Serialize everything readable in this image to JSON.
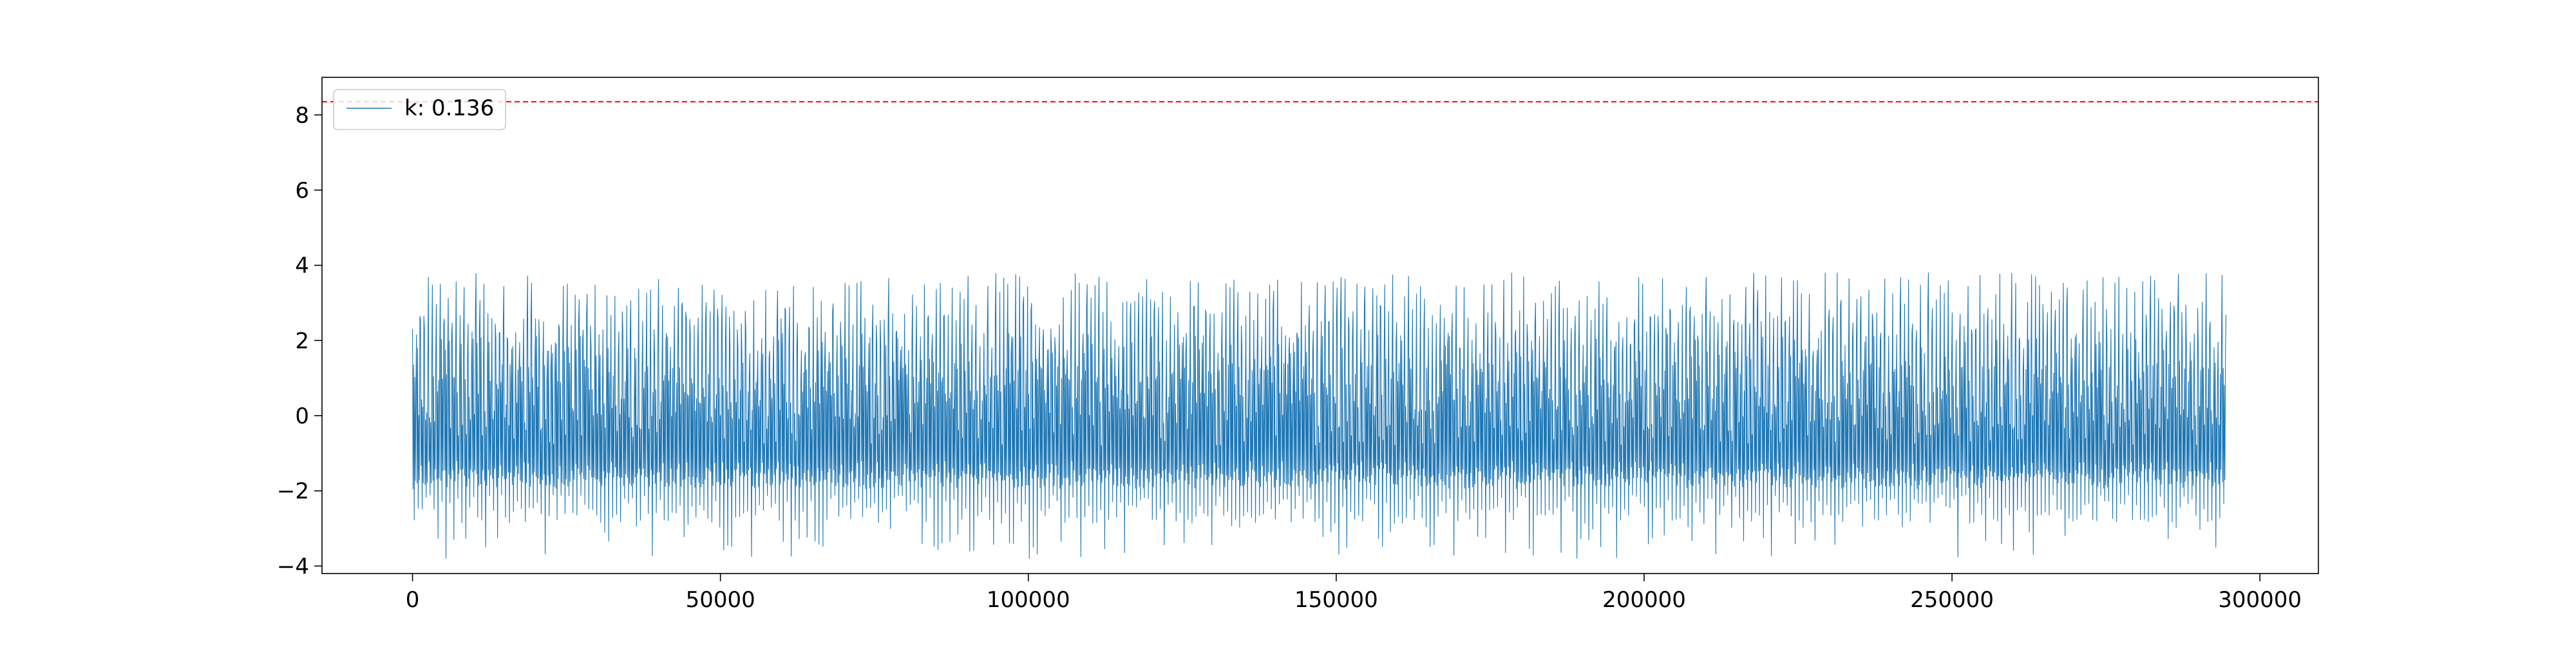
{
  "chart_data": {
    "type": "line",
    "title": "",
    "xlabel": "",
    "ylabel": "",
    "xlim": [
      -14700,
      309500
    ],
    "ylim": [
      -4.2,
      9.0
    ],
    "x_ticks": [
      0,
      50000,
      100000,
      150000,
      200000,
      250000,
      300000
    ],
    "x_tick_labels": [
      "0",
      "50000",
      "100000",
      "150000",
      "200000",
      "250000",
      "300000"
    ],
    "y_ticks": [
      -4,
      -2,
      0,
      2,
      4,
      6,
      8
    ],
    "y_tick_labels": [
      "−4",
      "−2",
      "0",
      "2",
      "4",
      "6",
      "8"
    ],
    "grid": false,
    "legend_position": "top-left",
    "series": [
      {
        "name": "k: 0.136",
        "color": "#1f77b4",
        "x_range": [
          0,
          294500
        ],
        "upper_envelope": 3.8,
        "dense_upper": 3.0,
        "dense_lower": -1.9,
        "lower_envelope": -3.6,
        "style": "dense oscillating signal"
      }
    ],
    "threshold_line": {
      "value": 8.35,
      "color": "#ff0000",
      "style": "dashed"
    }
  }
}
